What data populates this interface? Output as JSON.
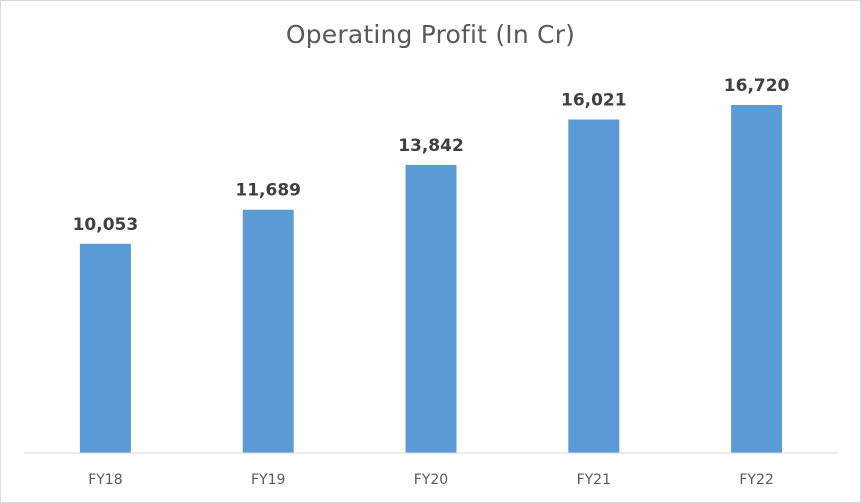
{
  "chart_data": {
    "type": "bar",
    "title": "Operating Profit (In Cr)",
    "categories": [
      "FY18",
      "FY19",
      "FY20",
      "FY21",
      "FY22"
    ],
    "values": [
      10053,
      11689,
      13842,
      16021,
      16720
    ],
    "value_labels": [
      "10,053",
      "11,689",
      "13,842",
      "16,021",
      "16,720"
    ],
    "xlabel": "",
    "ylabel": "",
    "ylim": [
      0,
      16720
    ],
    "grid": false,
    "legend": "none",
    "bar_color": "#5b9bd5",
    "label_color": "#404040",
    "tick_color": "#595959",
    "axis_color": "#d9d9d9"
  }
}
